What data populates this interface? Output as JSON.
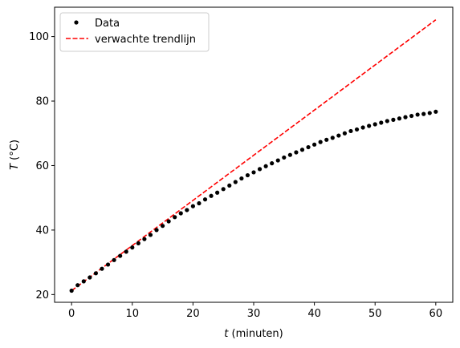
{
  "chart_data": {
    "type": "line",
    "xlabel_var": "t",
    "xlabel_unit": " (minuten)",
    "ylabel_var": "T",
    "ylabel_unit": " (°C)",
    "xlim": [
      -2.8,
      62.8
    ],
    "ylim": [
      17.6,
      109.1
    ],
    "x_ticks": [
      0,
      10,
      20,
      30,
      40,
      50,
      60
    ],
    "y_ticks": [
      20,
      40,
      60,
      80,
      100
    ],
    "grid": false,
    "legend_position": "top-left",
    "series": [
      {
        "name": "Data",
        "style": "points",
        "color": "#000000",
        "x": [
          0,
          1,
          2,
          3,
          4,
          5,
          6,
          7,
          8,
          9,
          10,
          11,
          12,
          13,
          14,
          15,
          16,
          17,
          18,
          19,
          20,
          21,
          22,
          23,
          24,
          25,
          26,
          27,
          28,
          29,
          30,
          31,
          32,
          33,
          34,
          35,
          36,
          37,
          38,
          39,
          40,
          41,
          42,
          43,
          44,
          45,
          46,
          47,
          48,
          49,
          50,
          51,
          52,
          53,
          54,
          55,
          56,
          57,
          58,
          59,
          60
        ],
        "y": [
          21.2,
          22.9,
          24.1,
          25.3,
          26.6,
          28.0,
          29.3,
          30.7,
          32.0,
          33.3,
          34.6,
          35.9,
          37.2,
          38.5,
          40.0,
          41.3,
          42.7,
          44.0,
          45.2,
          46.2,
          47.4,
          48.3,
          49.5,
          50.6,
          51.6,
          52.7,
          53.8,
          54.9,
          56.0,
          57.0,
          57.9,
          58.9,
          59.8,
          60.7,
          61.6,
          62.5,
          63.3,
          64.1,
          64.9,
          65.7,
          66.5,
          67.3,
          68.0,
          68.6,
          69.3,
          70.0,
          70.7,
          71.2,
          71.8,
          72.3,
          72.8,
          73.3,
          73.8,
          74.2,
          74.6,
          75.0,
          75.4,
          75.8,
          76.0,
          76.3,
          76.7
        ]
      },
      {
        "name": "verwachte trendlijn",
        "style": "dashed",
        "color": "#ff0000",
        "x": [
          0,
          60
        ],
        "y": [
          21.2,
          105.2
        ]
      }
    ]
  }
}
